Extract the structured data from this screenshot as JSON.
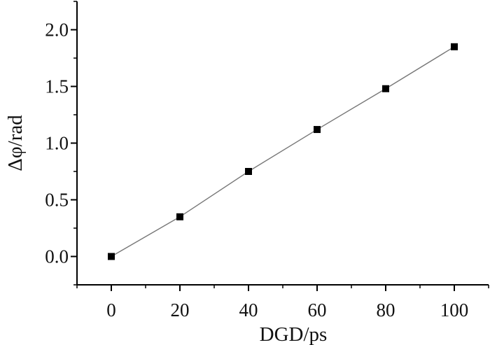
{
  "chart_data": {
    "type": "line",
    "xlabel": "DGD/ps",
    "ylabel": "Δφ/rad",
    "xlim": [
      -10,
      110
    ],
    "ylim": [
      -0.25,
      2.25
    ],
    "x_ticks": [
      0,
      20,
      40,
      60,
      80,
      100
    ],
    "y_ticks": [
      0.0,
      0.5,
      1.0,
      1.5,
      2.0
    ],
    "x_tick_labels": [
      "0",
      "20",
      "40",
      "60",
      "80",
      "100"
    ],
    "y_tick_labels": [
      "0.0",
      "0.5",
      "1.0",
      "1.5",
      "2.0"
    ],
    "grid": false,
    "marker": "square",
    "series": [
      {
        "x": [
          0,
          20,
          40,
          60,
          80,
          100
        ],
        "y": [
          0.0,
          0.35,
          0.75,
          1.12,
          1.48,
          1.85
        ]
      }
    ],
    "colors": {
      "line": "#777777",
      "marker": "#000000",
      "axis": "#000000"
    }
  }
}
